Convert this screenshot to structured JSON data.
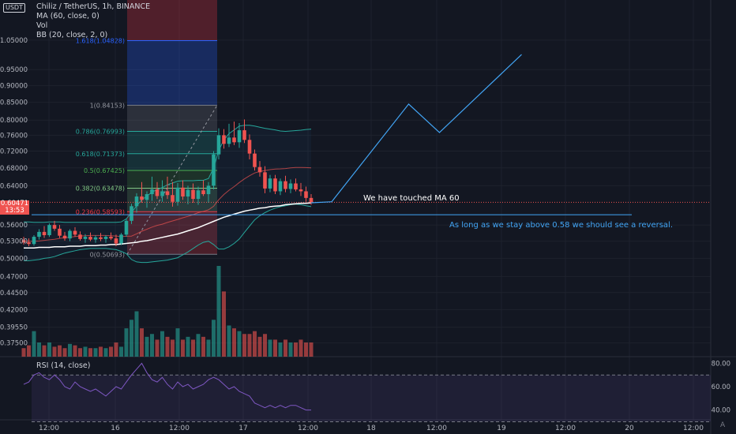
{
  "header": {
    "symbol_line": "Chiliz / TetherUS, 1h, BINANCE",
    "ma_label": "MA (60, close, 0)",
    "vol_label": "Vol",
    "bb_label": "BB (20, close, 2, 0)",
    "currency_badge": "USDT"
  },
  "price_tag": {
    "value": "0.60471",
    "countdown": "13:53"
  },
  "rsi_label": "RSI (14, close)",
  "annotations": {
    "touched": "We have touched MA 60",
    "reversal": "As long as we stay above 0.58 we should see a reversal."
  },
  "corner_label": "A",
  "colors": {
    "background": "#131722",
    "up": "#26a69a",
    "down": "#ef5350",
    "ma": "#ffffff",
    "bb": "#2962ff",
    "rsi": "#7e57c2",
    "projection": "#42a5f5"
  },
  "chart_data": [
    {
      "type": "candlestick",
      "title": "Chiliz / TetherUS, 1h, BINANCE",
      "scale": "log",
      "ylim": [
        0.355,
        1.22
      ],
      "price_axis": [
        "1.05000",
        "0.95000",
        "0.90000",
        "0.85000",
        "0.80000",
        "0.76000",
        "0.72000",
        "0.68000",
        "0.64000",
        "0.56000",
        "0.53000",
        "0.50000",
        "0.47000",
        "0.44500",
        "0.42000",
        "0.39550",
        "0.37500"
      ],
      "time_axis": [
        "12:00",
        "16",
        "12:00",
        "17",
        "12:00",
        "18",
        "12:00",
        "19",
        "12:00",
        "20",
        "12:00"
      ],
      "candles_ohlc": [
        [
          0.532,
          0.538,
          0.524,
          0.528
        ],
        [
          0.528,
          0.535,
          0.521,
          0.525
        ],
        [
          0.525,
          0.541,
          0.522,
          0.538
        ],
        [
          0.538,
          0.552,
          0.533,
          0.547
        ],
        [
          0.547,
          0.558,
          0.536,
          0.541
        ],
        [
          0.541,
          0.563,
          0.538,
          0.56
        ],
        [
          0.56,
          0.568,
          0.549,
          0.553
        ],
        [
          0.553,
          0.56,
          0.536,
          0.54
        ],
        [
          0.54,
          0.547,
          0.531,
          0.535
        ],
        [
          0.535,
          0.552,
          0.53,
          0.549
        ],
        [
          0.549,
          0.556,
          0.538,
          0.542
        ],
        [
          0.542,
          0.548,
          0.531,
          0.534
        ],
        [
          0.534,
          0.543,
          0.527,
          0.538
        ],
        [
          0.538,
          0.546,
          0.53,
          0.533
        ],
        [
          0.533,
          0.541,
          0.527,
          0.537
        ],
        [
          0.537,
          0.545,
          0.53,
          0.534
        ],
        [
          0.534,
          0.541,
          0.527,
          0.538
        ],
        [
          0.538,
          0.546,
          0.532,
          0.535
        ],
        [
          0.535,
          0.542,
          0.521,
          0.526
        ],
        [
          0.526,
          0.545,
          0.523,
          0.542
        ],
        [
          0.542,
          0.572,
          0.538,
          0.568
        ],
        [
          0.568,
          0.602,
          0.562,
          0.597
        ],
        [
          0.597,
          0.624,
          0.584,
          0.617
        ],
        [
          0.617,
          0.648,
          0.604,
          0.61
        ],
        [
          0.61,
          0.628,
          0.594,
          0.622
        ],
        [
          0.622,
          0.66,
          0.608,
          0.632
        ],
        [
          0.632,
          0.648,
          0.612,
          0.618
        ],
        [
          0.618,
          0.652,
          0.606,
          0.628
        ],
        [
          0.628,
          0.66,
          0.612,
          0.62
        ],
        [
          0.62,
          0.648,
          0.596,
          0.606
        ],
        [
          0.606,
          0.646,
          0.598,
          0.636
        ],
        [
          0.636,
          0.652,
          0.61,
          0.617
        ],
        [
          0.617,
          0.64,
          0.601,
          0.631
        ],
        [
          0.631,
          0.645,
          0.604,
          0.612
        ],
        [
          0.612,
          0.638,
          0.6,
          0.63
        ],
        [
          0.63,
          0.652,
          0.618,
          0.622
        ],
        [
          0.622,
          0.648,
          0.604,
          0.64
        ],
        [
          0.64,
          0.72,
          0.632,
          0.712
        ],
        [
          0.712,
          0.778,
          0.7,
          0.76
        ],
        [
          0.76,
          0.776,
          0.726,
          0.738
        ],
        [
          0.738,
          0.79,
          0.73,
          0.754
        ],
        [
          0.754,
          0.796,
          0.735,
          0.742
        ],
        [
          0.742,
          0.792,
          0.728,
          0.773
        ],
        [
          0.773,
          0.802,
          0.74,
          0.748
        ],
        [
          0.748,
          0.762,
          0.7,
          0.714
        ],
        [
          0.714,
          0.724,
          0.674,
          0.682
        ],
        [
          0.682,
          0.696,
          0.66,
          0.67
        ],
        [
          0.67,
          0.684,
          0.624,
          0.634
        ],
        [
          0.634,
          0.664,
          0.626,
          0.656
        ],
        [
          0.656,
          0.664,
          0.622,
          0.628
        ],
        [
          0.628,
          0.656,
          0.62,
          0.65
        ],
        [
          0.65,
          0.662,
          0.626,
          0.633
        ],
        [
          0.633,
          0.654,
          0.624,
          0.645
        ],
        [
          0.645,
          0.656,
          0.628,
          0.632
        ],
        [
          0.632,
          0.646,
          0.618,
          0.628
        ],
        [
          0.628,
          0.638,
          0.606,
          0.614
        ],
        [
          0.614,
          0.622,
          0.6,
          0.605
        ]
      ],
      "volume": [
        0.3,
        0.4,
        0.9,
        0.5,
        0.4,
        0.5,
        0.35,
        0.4,
        0.3,
        0.45,
        0.4,
        0.3,
        0.35,
        0.3,
        0.3,
        0.35,
        0.3,
        0.35,
        0.5,
        0.35,
        1.0,
        1.3,
        1.6,
        1.0,
        0.7,
        0.8,
        0.6,
        0.9,
        0.7,
        0.6,
        1.0,
        0.6,
        0.7,
        0.6,
        0.8,
        0.7,
        0.6,
        1.3,
        3.2,
        2.3,
        1.1,
        1.0,
        0.9,
        0.8,
        0.8,
        0.9,
        0.7,
        0.8,
        0.6,
        0.6,
        0.5,
        0.6,
        0.5,
        0.5,
        0.6,
        0.5,
        0.5
      ],
      "ma_60": [
        0.518,
        0.518,
        0.518,
        0.519,
        0.519,
        0.519,
        0.52,
        0.52,
        0.52,
        0.521,
        0.521,
        0.521,
        0.522,
        0.522,
        0.522,
        0.523,
        0.523,
        0.524,
        0.524,
        0.525,
        0.526,
        0.527,
        0.528,
        0.53,
        0.531,
        0.533,
        0.535,
        0.537,
        0.539,
        0.541,
        0.543,
        0.546,
        0.549,
        0.552,
        0.555,
        0.559,
        0.563,
        0.567,
        0.571,
        0.575,
        0.578,
        0.581,
        0.584,
        0.587,
        0.589,
        0.591,
        0.593,
        0.594,
        0.596,
        0.597,
        0.598,
        0.6,
        0.601,
        0.602,
        0.603,
        0.603,
        0.604
      ],
      "bb_upper": [
        0.566,
        0.566,
        0.565,
        0.565,
        0.565,
        0.566,
        0.566,
        0.566,
        0.565,
        0.565,
        0.565,
        0.565,
        0.565,
        0.565,
        0.565,
        0.565,
        0.565,
        0.565,
        0.565,
        0.566,
        0.572,
        0.584,
        0.598,
        0.61,
        0.618,
        0.626,
        0.632,
        0.636,
        0.642,
        0.646,
        0.65,
        0.651,
        0.651,
        0.651,
        0.652,
        0.652,
        0.656,
        0.68,
        0.722,
        0.748,
        0.764,
        0.774,
        0.784,
        0.786,
        0.786,
        0.784,
        0.781,
        0.778,
        0.776,
        0.774,
        0.771,
        0.77,
        0.771,
        0.772,
        0.773,
        0.775,
        0.776
      ],
      "bb_lower": [
        0.496,
        0.496,
        0.497,
        0.498,
        0.5,
        0.501,
        0.503,
        0.506,
        0.509,
        0.511,
        0.513,
        0.515,
        0.516,
        0.517,
        0.517,
        0.517,
        0.517,
        0.516,
        0.515,
        0.512,
        0.508,
        0.498,
        0.494,
        0.493,
        0.493,
        0.494,
        0.495,
        0.496,
        0.497,
        0.499,
        0.501,
        0.506,
        0.511,
        0.517,
        0.523,
        0.528,
        0.53,
        0.524,
        0.516,
        0.516,
        0.52,
        0.526,
        0.534,
        0.546,
        0.558,
        0.57,
        0.578,
        0.584,
        0.589,
        0.593,
        0.596,
        0.598,
        0.6,
        0.601,
        0.6,
        0.598,
        0.596
      ]
    },
    {
      "type": "fibonacci",
      "levels": [
        {
          "ratio": 1.618,
          "label": "1.618(1.04828)",
          "price": 1.04828
        },
        {
          "ratio": 1,
          "label": "1(0.84153)",
          "price": 0.84153
        },
        {
          "ratio": 0.786,
          "label": "0.786(0.76993)",
          "price": 0.76993
        },
        {
          "ratio": 0.618,
          "label": "0.618(0.71373)",
          "price": 0.71373
        },
        {
          "ratio": 0.5,
          "label": "0.5(0.67425)",
          "price": 0.67425
        },
        {
          "ratio": 0.382,
          "label": "0.382(0.63478)",
          "price": 0.63478
        },
        {
          "ratio": 0.236,
          "label": "0.236(0.58593)",
          "price": 0.58593
        },
        {
          "ratio": 0,
          "label": "0(0.50693)",
          "price": 0.50693
        }
      ]
    },
    {
      "type": "line",
      "name": "projection",
      "points": [
        [
          56,
          0.604
        ],
        [
          60,
          0.606
        ],
        [
          75,
          0.845
        ],
        [
          81,
          0.767
        ],
        [
          97,
          1.0
        ]
      ]
    },
    {
      "type": "line",
      "name": "RSI (14, close)",
      "ylim": [
        33,
        83
      ],
      "yticks": [
        "80.00",
        "60.00",
        "40.00"
      ],
      "bands": [
        30,
        70
      ],
      "values": [
        62,
        64,
        70,
        72,
        68,
        66,
        70,
        66,
        60,
        58,
        64,
        60,
        58,
        56,
        58,
        55,
        52,
        56,
        60,
        58,
        64,
        70,
        75,
        80,
        72,
        66,
        64,
        68,
        62,
        58,
        64,
        60,
        62,
        58,
        60,
        62,
        66,
        68,
        66,
        62,
        58,
        60,
        56,
        54,
        52,
        46,
        44,
        42,
        44,
        42,
        44,
        42,
        44,
        44,
        42,
        40,
        40
      ]
    }
  ]
}
